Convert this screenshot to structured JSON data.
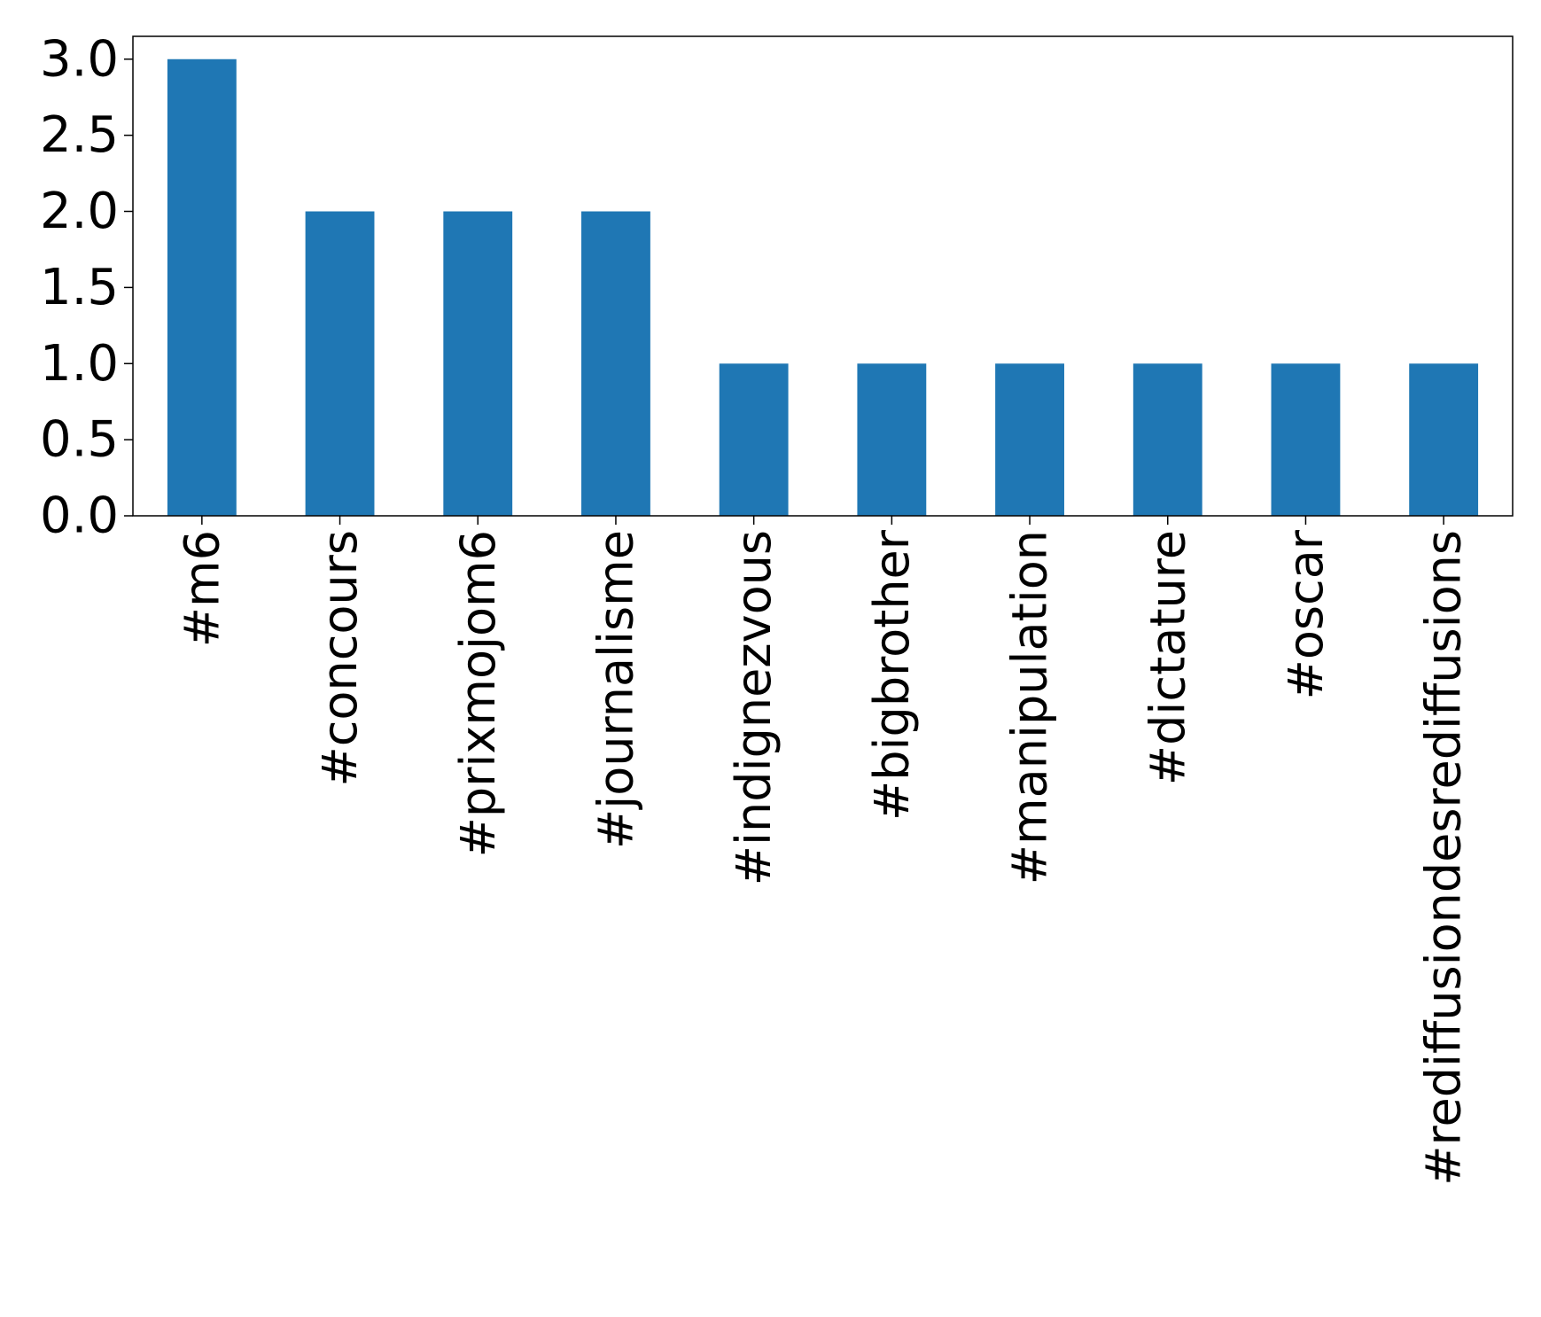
{
  "chart_data": {
    "type": "bar",
    "title": "",
    "xlabel": "",
    "ylabel": "",
    "categories": [
      "#m6",
      "#concours",
      "#prixmojom6",
      "#journalisme",
      "#indignezvous",
      "#bigbrother",
      "#manipulation",
      "#dictature",
      "#oscar",
      "#rediffusiondesrediffusions"
    ],
    "values": [
      3,
      2,
      2,
      2,
      1,
      1,
      1,
      1,
      1,
      1
    ],
    "ylim": [
      0,
      3.15
    ],
    "yticks": [
      "0.0",
      "0.5",
      "1.0",
      "1.5",
      "2.0",
      "2.5",
      "3.0"
    ],
    "bar_color": "#1f77b4",
    "grid": false,
    "legend": "none"
  }
}
